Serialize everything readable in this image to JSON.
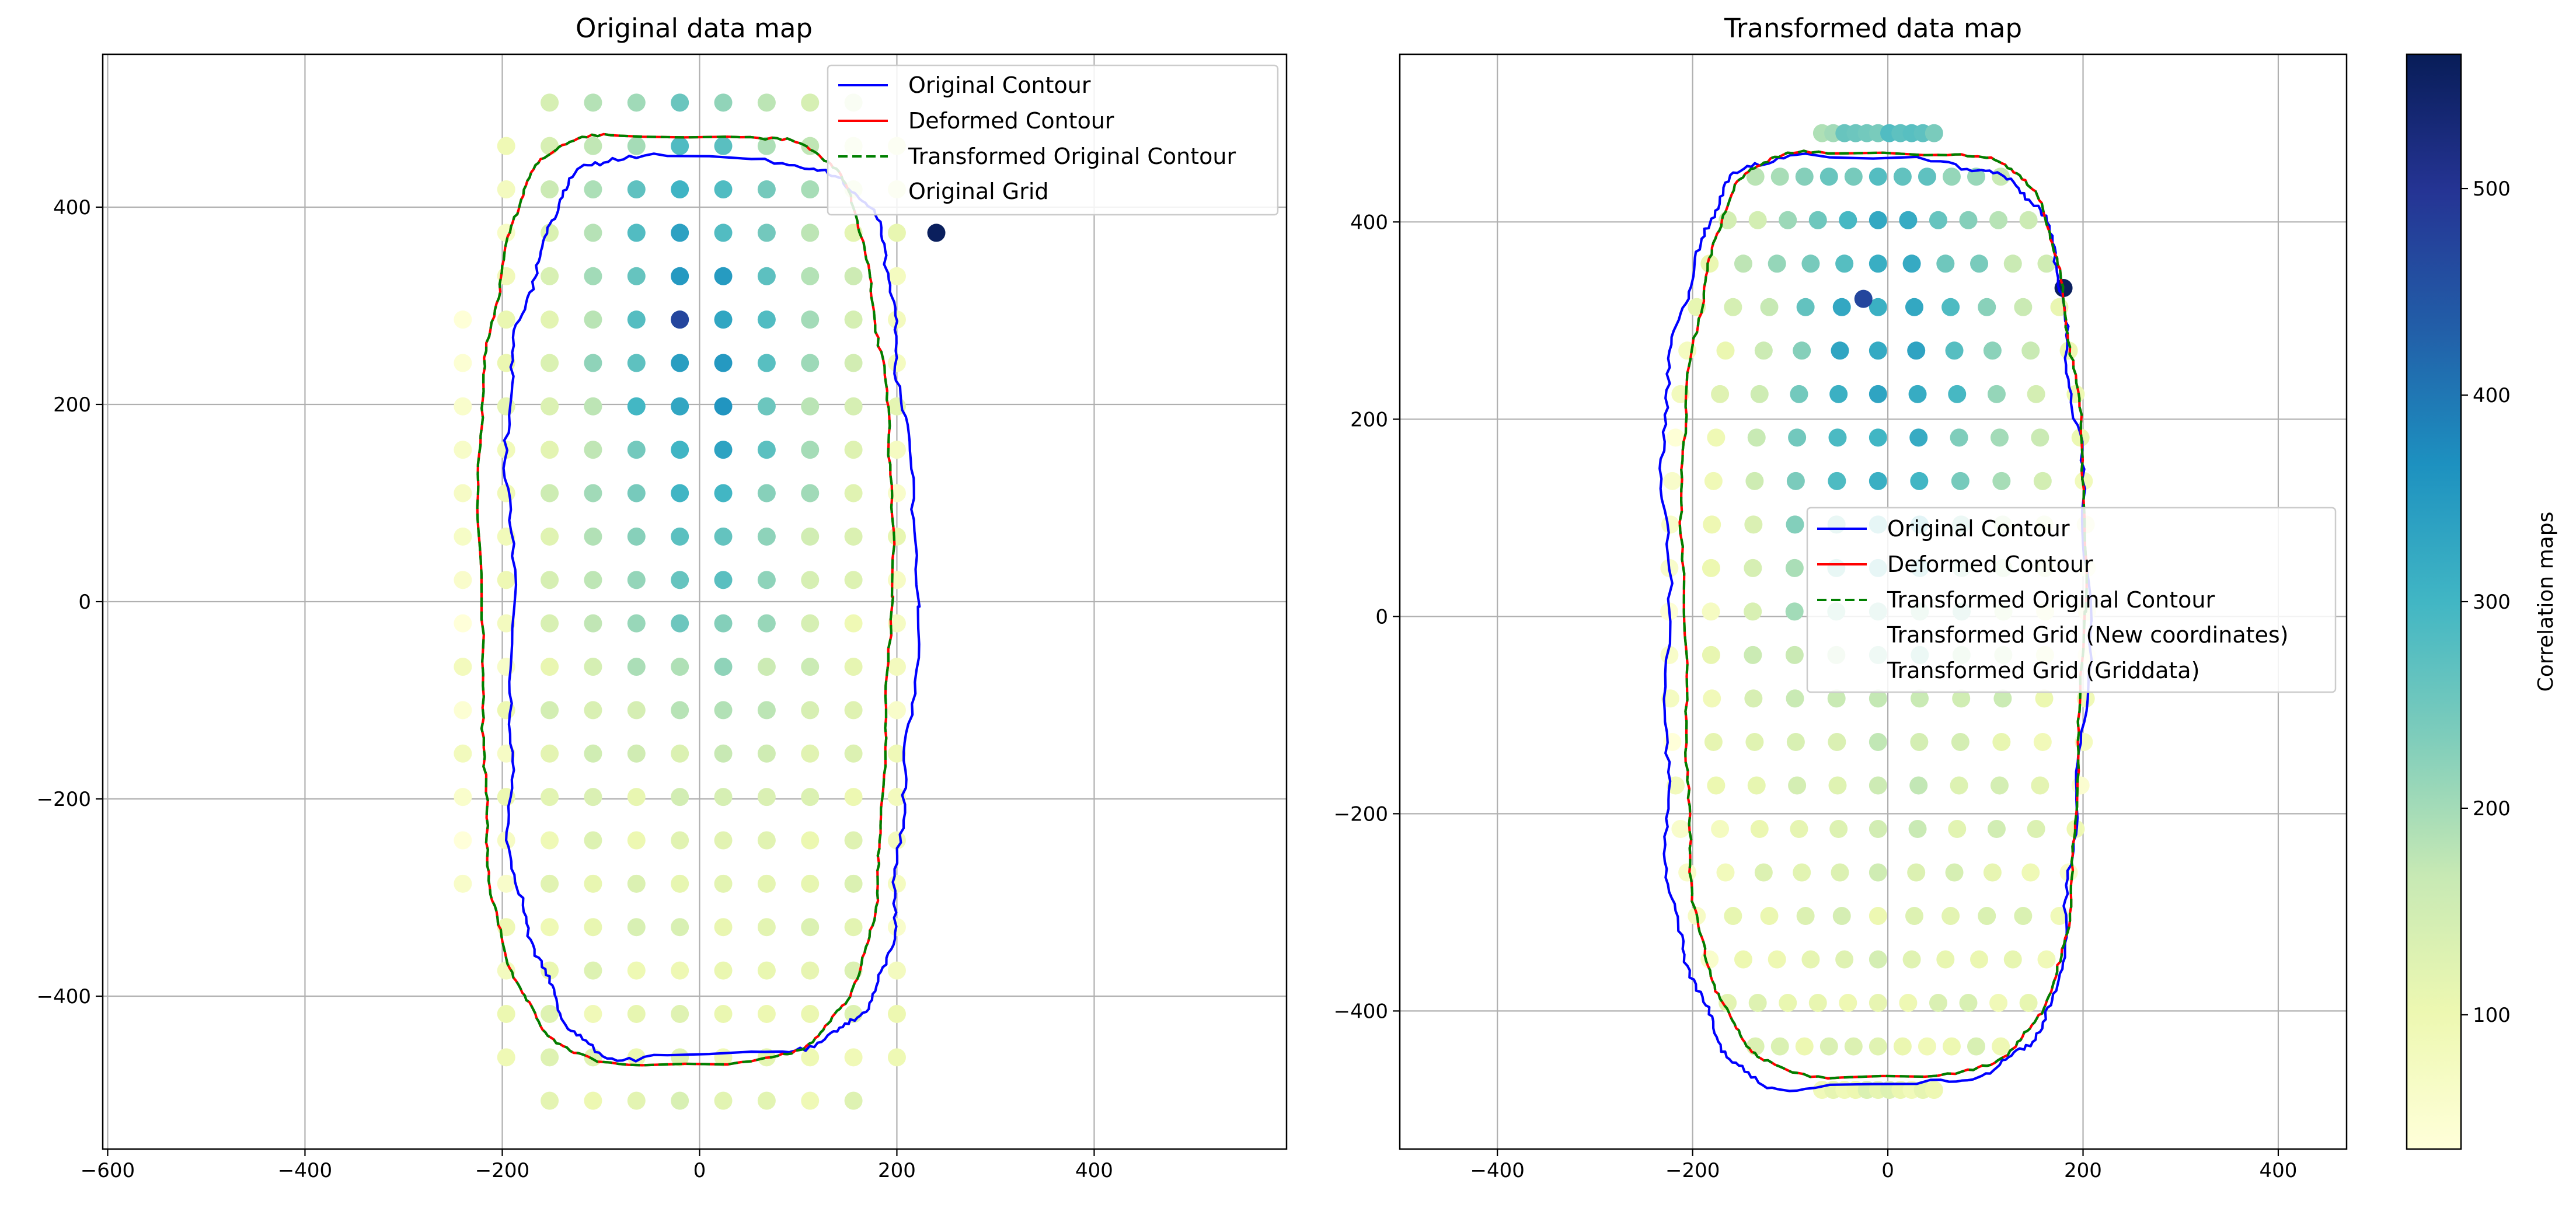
{
  "figure_type": "dual scatter with contours and colorbar",
  "colormap": "YlGnBu",
  "colors": {
    "original_contour": "#0000ff",
    "deformed_contour": "#ff0000",
    "transformed_original_contour": "#008000",
    "grid": "#b0b0b0"
  },
  "colorbar": {
    "label": "Correlation maps",
    "range": [
      35,
      565
    ],
    "ticks": [
      100,
      200,
      300,
      400,
      500
    ]
  },
  "chart_data": [
    {
      "type": "scatter",
      "title": "Original data map",
      "xlim": [
        -605,
        595
      ],
      "ylim": [
        -555,
        555
      ],
      "xticks": [
        -600,
        -400,
        -200,
        0,
        200,
        400
      ],
      "yticks": [
        -400,
        -200,
        0,
        200,
        400
      ],
      "grid": true,
      "legend_position": "top-right",
      "legend": [
        "Original Contour",
        "Deformed Contour",
        "Transformed Original Contour",
        "Original Grid"
      ],
      "grid_spacing": {
        "x": 44,
        "y": 44
      },
      "point_range": {
        "x": [
          -240,
          240
        ],
        "y": [
          -506,
          506
        ]
      },
      "contours": {
        "original": {
          "cx": 10,
          "cy": -5,
          "a": 205,
          "b": 455
        },
        "deformed": {
          "cx": -15,
          "cy": 5,
          "a": 208,
          "b": 470
        }
      },
      "value_peak": {
        "x": 0,
        "y": 250,
        "sx": 110,
        "sy": 230,
        "base": 110,
        "amp": 240
      },
      "hot_points": [
        {
          "x": 240,
          "y": 374,
          "value": 560
        },
        {
          "x": -20,
          "y": 286,
          "value": 470
        }
      ]
    },
    {
      "type": "scatter",
      "title": "Transformed data map",
      "xlim": [
        -500,
        470
      ],
      "ylim": [
        -540,
        570
      ],
      "xticks": [
        -400,
        -200,
        0,
        200,
        400
      ],
      "yticks": [
        -400,
        -200,
        0,
        200,
        400
      ],
      "grid": true,
      "legend_position": "center-right",
      "legend": [
        "Original Contour",
        "Deformed Contour",
        "Transformed Original Contour",
        "Transformed Grid (New coordinates)",
        "Transformed Grid (Griddata)"
      ],
      "contours": {
        "original": {
          "cx": -15,
          "cy": -5,
          "a": 215,
          "b": 470
        },
        "deformed": {
          "cx": -5,
          "cy": 5,
          "a": 205,
          "b": 468
        }
      },
      "grid_shape": {
        "cols": 11,
        "rows": 23
      },
      "hot_points": [
        {
          "x": 180,
          "y": 333,
          "value": 560
        },
        {
          "x": -25,
          "y": 322,
          "value": 470
        }
      ]
    }
  ]
}
